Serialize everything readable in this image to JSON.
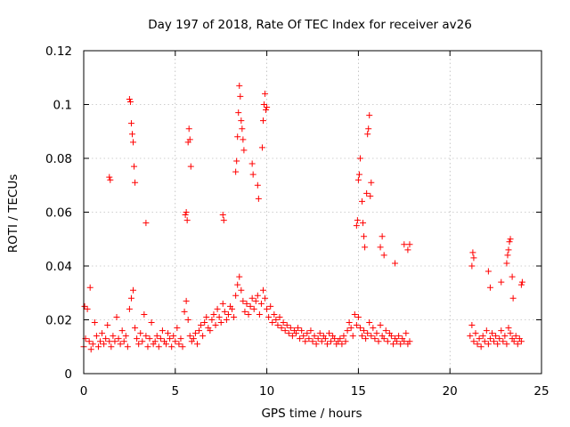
{
  "chart_data": {
    "type": "scatter",
    "title": "Day 197 of 2018, Rate Of TEC Index for receiver av26",
    "xlabel": "GPS time / hours",
    "ylabel": "ROTI / TECUs",
    "xlim": [
      0,
      25
    ],
    "ylim": [
      0,
      0.12
    ],
    "x_ticks": [
      0,
      5,
      10,
      15,
      20,
      25
    ],
    "y_ticks": [
      0,
      0.02,
      0.04,
      0.06,
      0.08,
      0.1,
      0.12
    ],
    "x_tick_labels": [
      "0",
      "5",
      "10",
      "15",
      "20",
      "25"
    ],
    "y_tick_labels": [
      "0",
      "0.02",
      "0.04",
      "0.06",
      "0.08",
      "0.1",
      "0.12"
    ],
    "grid": true,
    "marker": "plus",
    "color": "#ff0000",
    "series": [
      {
        "x": [
          0.0,
          0.1,
          0.2,
          0.3,
          0.4,
          0.5,
          0.6,
          0.7,
          0.8,
          0.9,
          1.0,
          1.1,
          1.2,
          1.3,
          1.4,
          1.5,
          1.6,
          1.7,
          1.8,
          1.9,
          2.0,
          2.1,
          2.2,
          2.3,
          2.4,
          2.5,
          2.6,
          2.7,
          2.8,
          2.9,
          3.0,
          3.1,
          3.2,
          3.3,
          3.4,
          3.5,
          3.6,
          3.7,
          3.8,
          3.9,
          4.0,
          4.1,
          4.2,
          4.3,
          4.4,
          4.5,
          4.6,
          4.7,
          4.8,
          4.9,
          5.0,
          5.1,
          5.2,
          5.3,
          5.4,
          5.5,
          5.6,
          5.7,
          5.8,
          5.9,
          6.0,
          6.1,
          6.2,
          6.3,
          6.4,
          6.5,
          6.6,
          6.7,
          6.8,
          6.9,
          7.0,
          7.1,
          7.2,
          7.3,
          7.4,
          7.5,
          7.6,
          7.7,
          7.8,
          7.9,
          8.0,
          8.1,
          8.2,
          8.3,
          8.4,
          8.5,
          8.6,
          8.7,
          8.8,
          8.9,
          9.0,
          9.1,
          9.2,
          9.3,
          9.4,
          9.5,
          9.6,
          9.7,
          9.8,
          9.9,
          10.0,
          10.1,
          10.2,
          10.3,
          10.4,
          10.5,
          10.6,
          10.7,
          10.8,
          10.9,
          11.0,
          11.1,
          11.2,
          11.3,
          11.4,
          11.5,
          11.6,
          11.7,
          11.8,
          11.9,
          12.0,
          12.1,
          12.2,
          12.3,
          12.4,
          12.5,
          12.6,
          12.7,
          12.8,
          12.9,
          13.0,
          13.1,
          13.2,
          13.3,
          13.4,
          13.5,
          13.6,
          13.7,
          13.8,
          13.9,
          14.0,
          14.1,
          14.2,
          14.3,
          14.4,
          14.5,
          14.6,
          14.7,
          14.8,
          14.9,
          15.0,
          15.1,
          15.2,
          15.3,
          15.4,
          15.5,
          15.6,
          15.7,
          15.8,
          15.9,
          16.0,
          16.1,
          16.2,
          16.3,
          16.4,
          16.5,
          16.6,
          16.7,
          16.8,
          16.9,
          17.0,
          17.1,
          17.2,
          17.3,
          17.4,
          17.5,
          17.6,
          17.7,
          17.8,
          21.1,
          21.2,
          21.3,
          21.4,
          21.5,
          21.6,
          21.7,
          21.8,
          21.9,
          22.0,
          22.1,
          22.2,
          22.3,
          22.4,
          22.5,
          22.6,
          22.7,
          22.8,
          22.9,
          23.0,
          23.1,
          23.2,
          23.3,
          23.4,
          23.5,
          23.6,
          23.7,
          23.8,
          23.9,
          0.05,
          0.35,
          1.4,
          1.45,
          2.5,
          2.55,
          2.6,
          2.65,
          2.7,
          2.75,
          2.8,
          3.4,
          5.55,
          5.6,
          5.65,
          5.7,
          5.75,
          5.8,
          5.85,
          7.6,
          7.65,
          8.3,
          8.35,
          8.4,
          8.45,
          8.5,
          8.55,
          8.6,
          8.65,
          8.7,
          8.75,
          9.2,
          9.25,
          9.5,
          9.55,
          9.75,
          9.8,
          9.85,
          9.9,
          9.95,
          10.0,
          14.9,
          14.95,
          15.0,
          15.05,
          15.1,
          15.2,
          15.25,
          15.3,
          15.35,
          15.45,
          15.5,
          15.55,
          15.6,
          15.65,
          15.7,
          16.2,
          16.3,
          16.4,
          17.0,
          17.5,
          17.7,
          17.8,
          21.2,
          21.25,
          21.3,
          22.1,
          22.2,
          22.8,
          23.1,
          23.15,
          23.2,
          23.25,
          23.3,
          23.4,
          23.45,
          23.9,
          23.95
        ],
        "y": [
          0.01,
          0.013,
          0.024,
          0.012,
          0.009,
          0.011,
          0.019,
          0.014,
          0.01,
          0.012,
          0.015,
          0.011,
          0.013,
          0.018,
          0.012,
          0.01,
          0.014,
          0.012,
          0.021,
          0.013,
          0.011,
          0.016,
          0.012,
          0.014,
          0.01,
          0.024,
          0.028,
          0.031,
          0.017,
          0.013,
          0.011,
          0.015,
          0.012,
          0.022,
          0.014,
          0.01,
          0.013,
          0.019,
          0.011,
          0.012,
          0.014,
          0.01,
          0.013,
          0.016,
          0.012,
          0.011,
          0.015,
          0.013,
          0.01,
          0.014,
          0.012,
          0.017,
          0.011,
          0.013,
          0.01,
          0.023,
          0.027,
          0.02,
          0.014,
          0.012,
          0.013,
          0.015,
          0.011,
          0.016,
          0.018,
          0.014,
          0.019,
          0.021,
          0.017,
          0.016,
          0.02,
          0.022,
          0.018,
          0.024,
          0.021,
          0.019,
          0.026,
          0.023,
          0.02,
          0.022,
          0.025,
          0.024,
          0.021,
          0.029,
          0.033,
          0.036,
          0.031,
          0.027,
          0.023,
          0.026,
          0.022,
          0.025,
          0.028,
          0.024,
          0.027,
          0.029,
          0.022,
          0.026,
          0.031,
          0.028,
          0.024,
          0.021,
          0.025,
          0.019,
          0.022,
          0.02,
          0.018,
          0.021,
          0.017,
          0.019,
          0.016,
          0.018,
          0.015,
          0.017,
          0.014,
          0.016,
          0.015,
          0.017,
          0.013,
          0.016,
          0.014,
          0.012,
          0.015,
          0.013,
          0.016,
          0.012,
          0.014,
          0.011,
          0.013,
          0.015,
          0.012,
          0.014,
          0.013,
          0.011,
          0.015,
          0.012,
          0.014,
          0.013,
          0.011,
          0.012,
          0.013,
          0.011,
          0.014,
          0.012,
          0.016,
          0.019,
          0.017,
          0.014,
          0.022,
          0.018,
          0.021,
          0.017,
          0.014,
          0.016,
          0.013,
          0.015,
          0.019,
          0.014,
          0.017,
          0.013,
          0.015,
          0.012,
          0.018,
          0.014,
          0.013,
          0.016,
          0.012,
          0.015,
          0.014,
          0.011,
          0.013,
          0.012,
          0.014,
          0.011,
          0.013,
          0.012,
          0.015,
          0.011,
          0.012,
          0.014,
          0.018,
          0.012,
          0.015,
          0.011,
          0.013,
          0.01,
          0.014,
          0.012,
          0.016,
          0.011,
          0.013,
          0.015,
          0.012,
          0.014,
          0.011,
          0.013,
          0.016,
          0.012,
          0.014,
          0.011,
          0.017,
          0.015,
          0.013,
          0.012,
          0.014,
          0.011,
          0.013,
          0.012,
          0.025,
          0.032,
          0.073,
          0.072,
          0.102,
          0.101,
          0.093,
          0.089,
          0.086,
          0.077,
          0.071,
          0.056,
          0.059,
          0.06,
          0.057,
          0.086,
          0.091,
          0.087,
          0.077,
          0.059,
          0.057,
          0.075,
          0.079,
          0.088,
          0.097,
          0.107,
          0.103,
          0.094,
          0.091,
          0.087,
          0.083,
          0.078,
          0.074,
          0.07,
          0.065,
          0.084,
          0.094,
          0.1,
          0.104,
          0.098,
          0.099,
          0.055,
          0.057,
          0.072,
          0.074,
          0.08,
          0.064,
          0.056,
          0.051,
          0.047,
          0.067,
          0.089,
          0.091,
          0.096,
          0.066,
          0.071,
          0.047,
          0.051,
          0.044,
          0.041,
          0.048,
          0.046,
          0.048,
          0.04,
          0.045,
          0.043,
          0.038,
          0.032,
          0.034,
          0.041,
          0.044,
          0.046,
          0.049,
          0.05,
          0.036,
          0.028,
          0.033,
          0.034
        ]
      }
    ]
  }
}
